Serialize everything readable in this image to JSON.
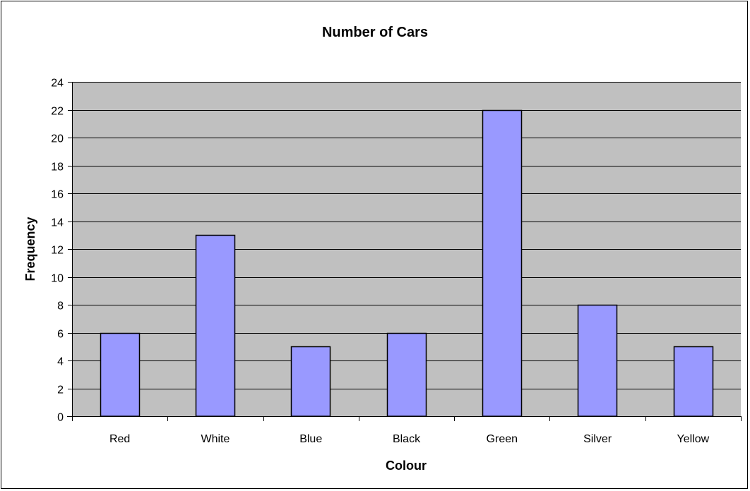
{
  "chart_data": {
    "type": "bar",
    "title": "Number of Cars",
    "xlabel": "Colour",
    "ylabel": "Frequency",
    "categories": [
      "Red",
      "White",
      "Blue",
      "Black",
      "Green",
      "Silver",
      "Yellow"
    ],
    "values": [
      6,
      13,
      5,
      6,
      22,
      8,
      5
    ],
    "ylim": [
      0,
      24
    ],
    "yticks": [
      "0",
      "2",
      "4",
      "6",
      "8",
      "10",
      "12",
      "14",
      "16",
      "18",
      "20",
      "22",
      "24"
    ],
    "grid": true,
    "legend": "none",
    "colors": {
      "bar_fill": "#9999ff",
      "bar_stroke": "#000000",
      "plot_background": "#c0c0c0",
      "gridline": "#000000"
    }
  }
}
